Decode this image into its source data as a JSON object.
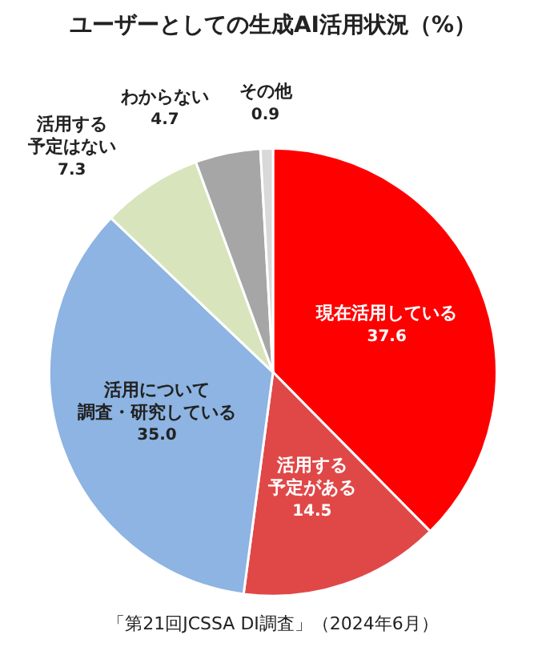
{
  "chart_data": {
    "type": "pie",
    "title": "ユーザーとしての生成AI活用状況（%）",
    "categories": [
      "現在活用している",
      "活用する予定がある",
      "活用について調査・研究している",
      "活用する予定はない",
      "わからない",
      "その他"
    ],
    "values": [
      37.6,
      14.5,
      35.0,
      7.3,
      4.7,
      0.9
    ],
    "colors": [
      "#ff0000",
      "#e04848",
      "#8db4e2",
      "#d8e4bc",
      "#a6a6a6",
      "#d9d9d9"
    ],
    "value_labels": [
      "37.6",
      "14.5",
      "35.0",
      "7.3",
      "4.7",
      "0.9"
    ],
    "legend": false,
    "annotations": [
      "「第21回JCSSA DI調査」（2024年6月）"
    ]
  }
}
